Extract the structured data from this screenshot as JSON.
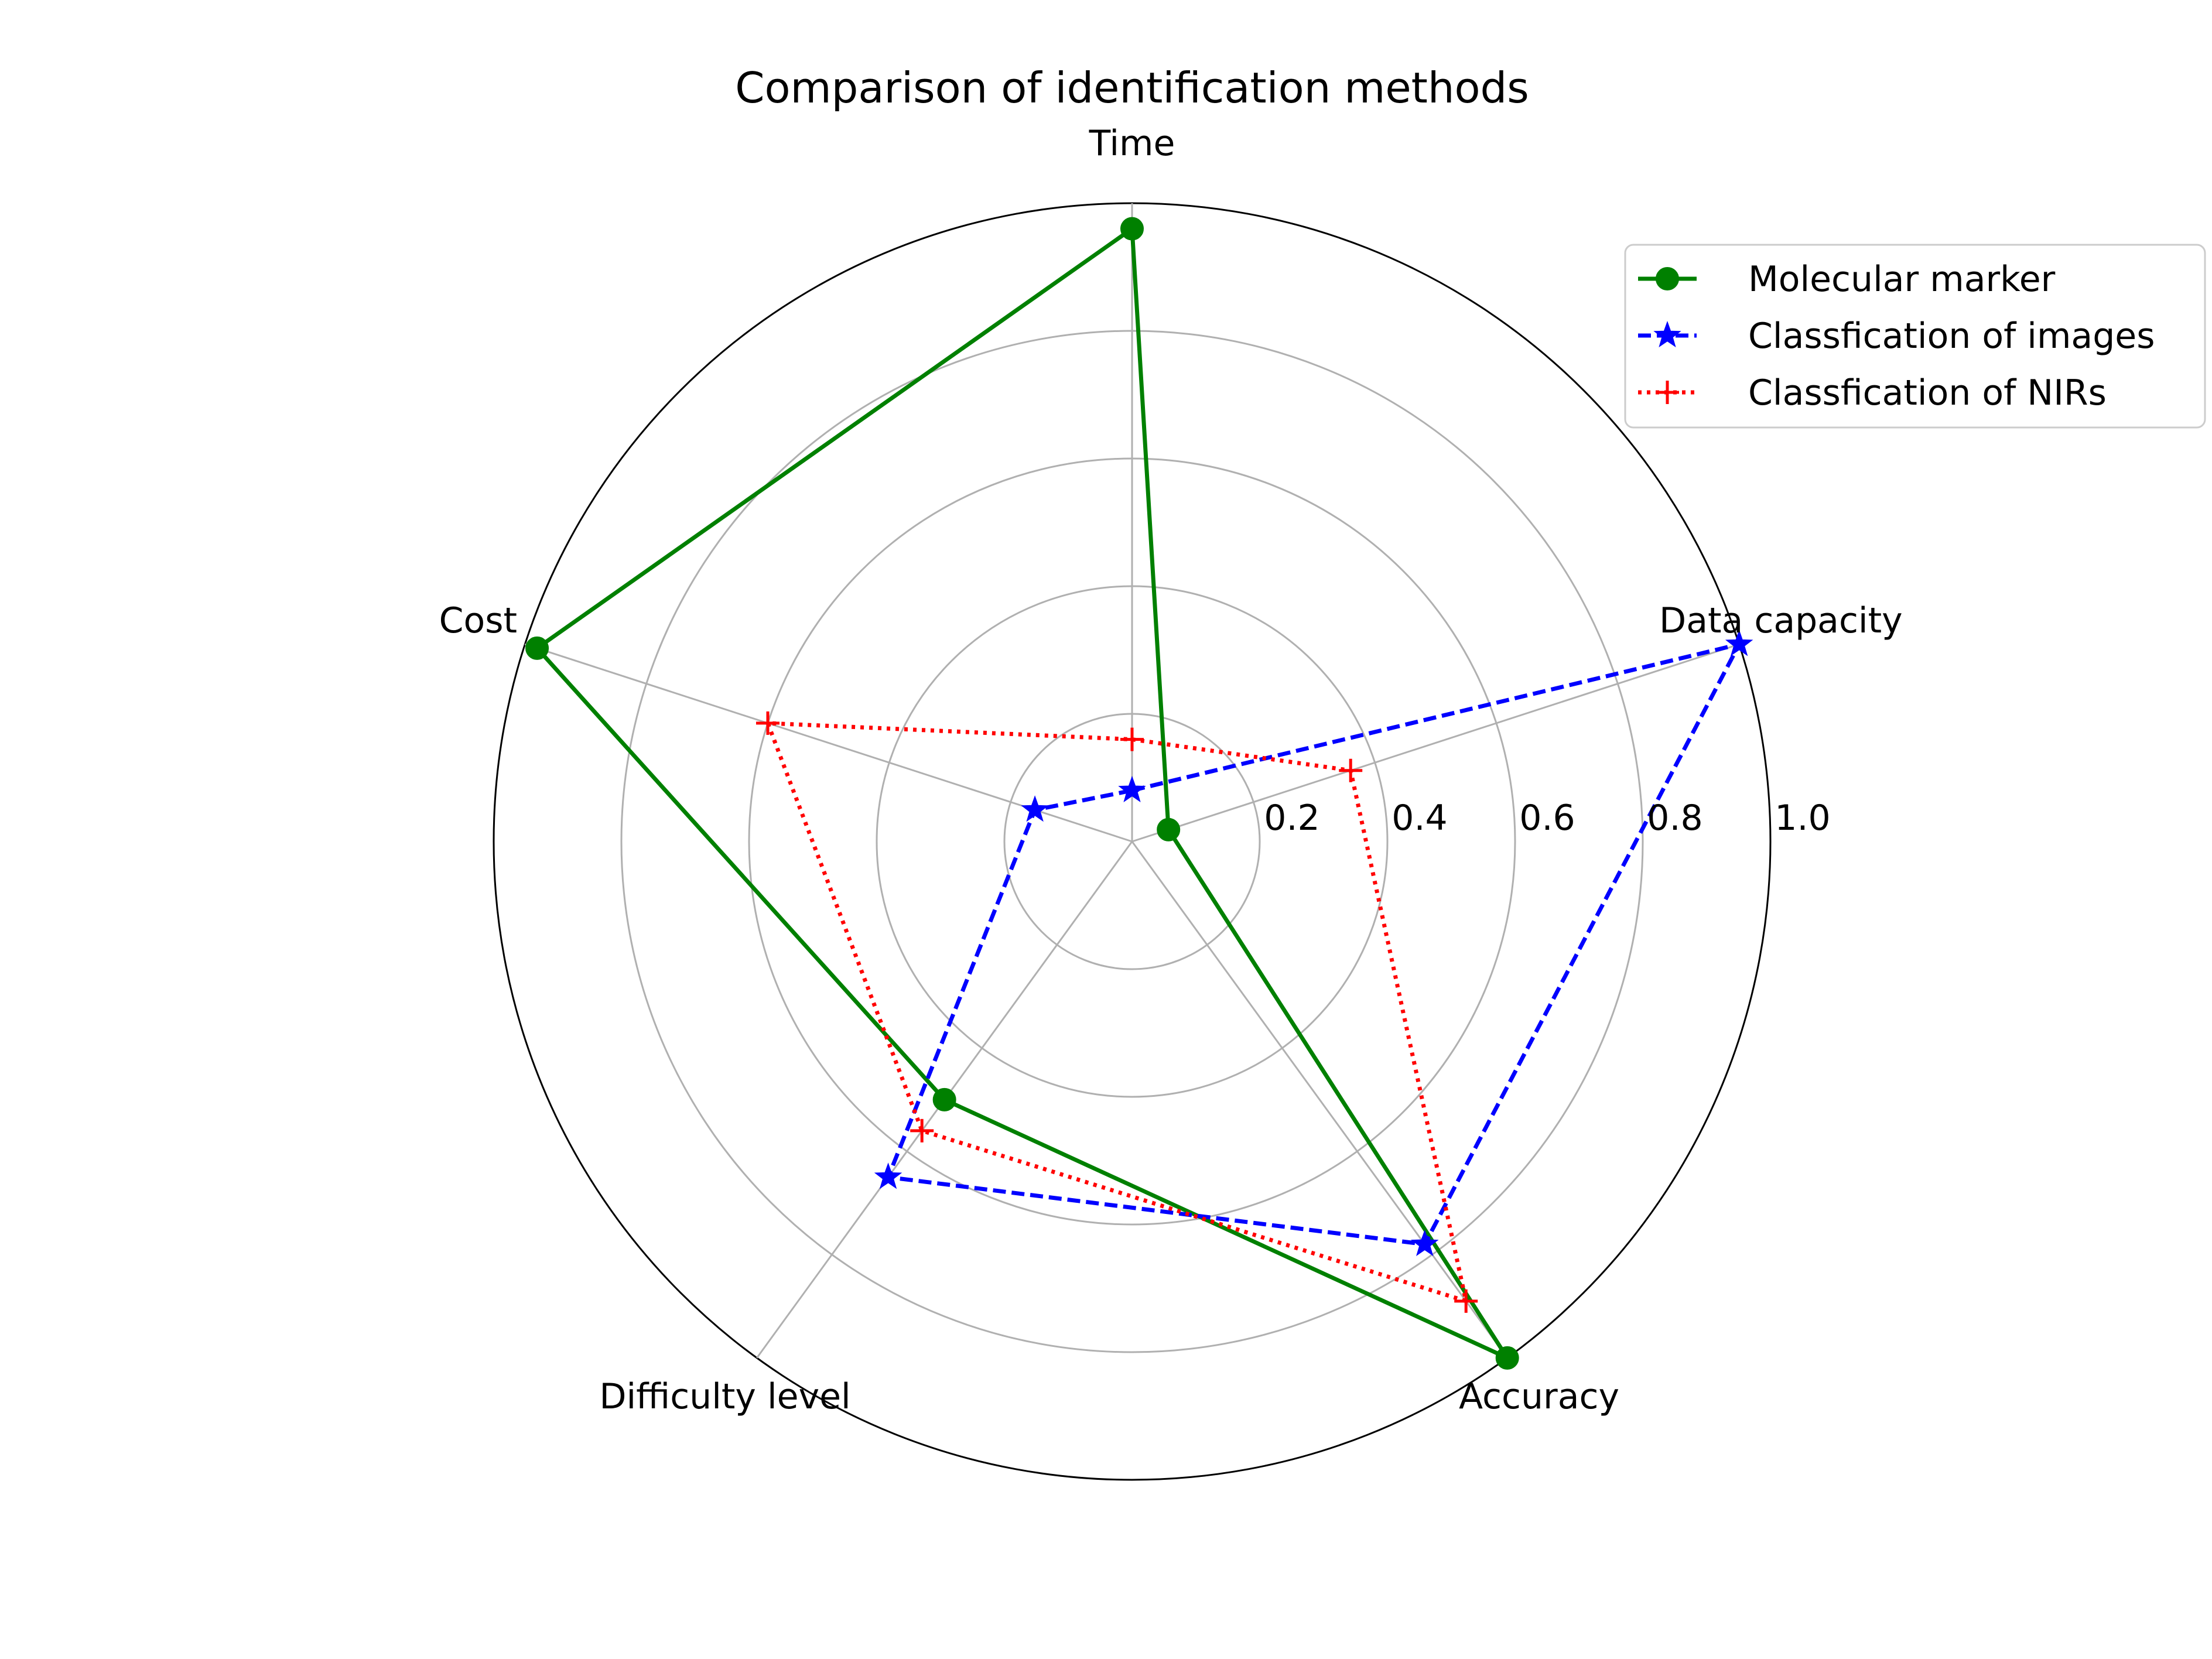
{
  "chart_data": {
    "type": "radar",
    "title": "Comparison of identification methods",
    "categories": [
      "Time",
      "Data capacity",
      "Accuracy",
      "Difficulty level",
      "Cost"
    ],
    "rlim": [
      0,
      1.0
    ],
    "radial_ticks": [
      0.2,
      0.4,
      0.6,
      0.8,
      1.0
    ],
    "radial_tick_labels": [
      "0.2",
      "0.4",
      "0.6",
      "0.8",
      "1.0"
    ],
    "grid": true,
    "legend_position": "top-right",
    "series": [
      {
        "name": "Molecular marker",
        "values": [
          0.96,
          0.06,
          1.0,
          0.5,
          0.98
        ],
        "color": "#008000",
        "line_style": "solid",
        "marker": "circle"
      },
      {
        "name": "Classfication of images",
        "values": [
          0.08,
          1.0,
          0.78,
          0.65,
          0.16
        ],
        "color": "#0000ff",
        "line_style": "dashed",
        "marker": "star"
      },
      {
        "name": "Classfication of NIRs",
        "values": [
          0.16,
          0.36,
          0.89,
          0.56,
          0.6
        ],
        "color": "#ff0000",
        "line_style": "dotted",
        "marker": "plus"
      }
    ]
  }
}
